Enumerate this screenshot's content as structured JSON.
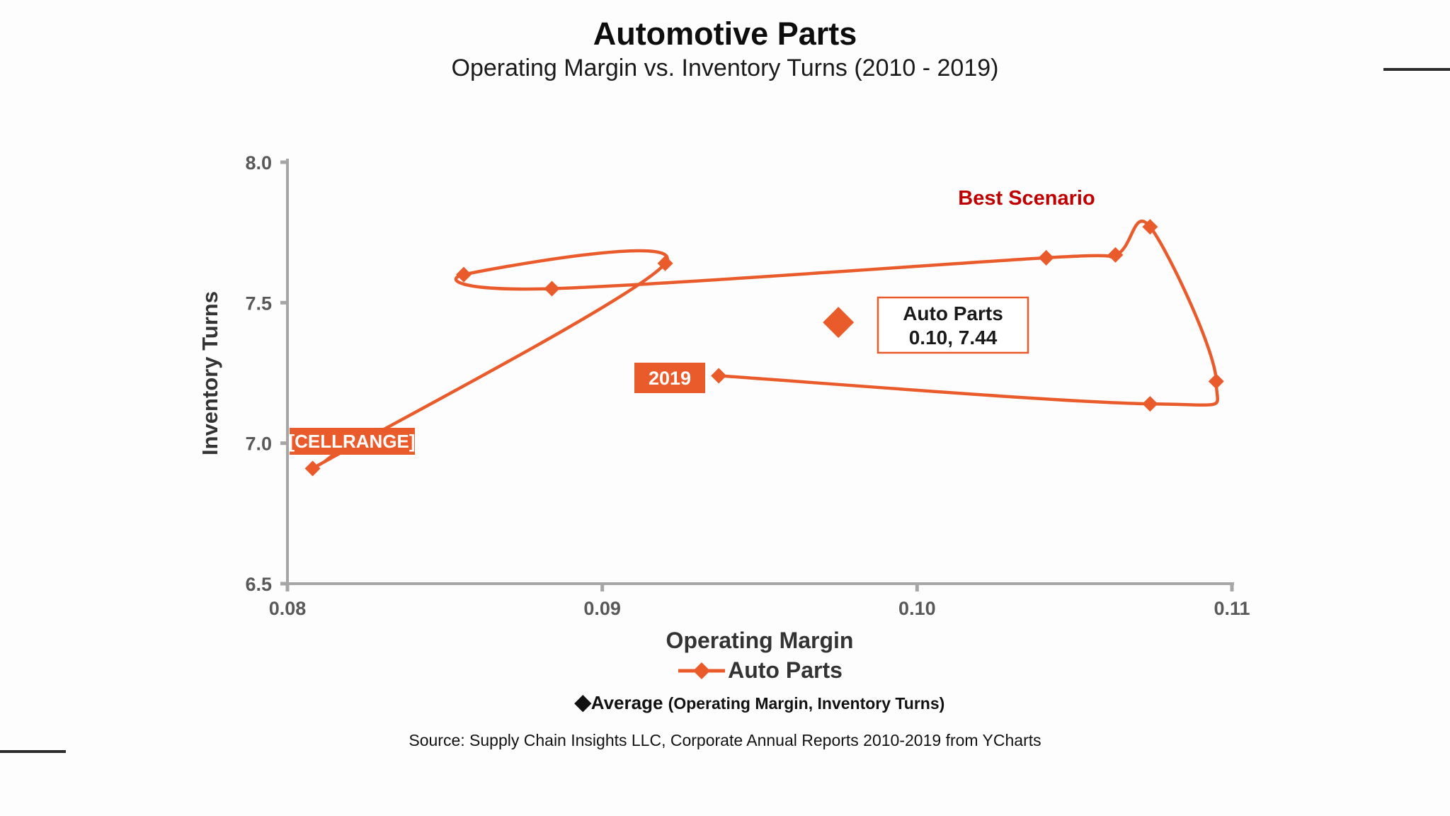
{
  "page": {
    "title": "Automotive Parts",
    "subtitle": "Operating Margin vs. Inventory Turns (2010 - 2019)",
    "source": "Source:  Supply Chain Insights LLC, Corporate Annual Reports 2010-2019 from YCharts"
  },
  "colors": {
    "series_orange": "#EA5B2B",
    "best_scenario_red": "#C00000",
    "axis_gray": "#A6A6A6",
    "tick_label_gray": "#595959",
    "text_dark": "#1a1a1a",
    "label_text_white": "#ffffff",
    "callout_fill": "#ffffff"
  },
  "chart_data": {
    "type": "scatter",
    "title": "Automotive Parts",
    "subtitle": "Operating Margin vs. Inventory Turns (2010 - 2019)",
    "xlabel": "Operating Margin",
    "ylabel": "Inventory Turns",
    "xlim": [
      0.08,
      0.11
    ],
    "ylim": [
      6.5,
      8.0
    ],
    "x_ticks": [
      "0.08",
      "0.09",
      "0.10",
      "0.11"
    ],
    "y_ticks": [
      "8.0",
      "7.5",
      "7.0",
      "6.5"
    ],
    "grid": false,
    "legend_position": "bottom",
    "series": [
      {
        "name": "Auto Parts",
        "color": "#EA5B2B",
        "style": "smooth line with diamond markers, trajectory 2010 to 2019",
        "points": [
          {
            "om": 0.0808,
            "it": 6.91,
            "label": "[CELLRANGE]"
          },
          {
            "om": 0.092,
            "it": 7.64
          },
          {
            "om": 0.0856,
            "it": 7.6
          },
          {
            "om": 0.0884,
            "it": 7.55
          },
          {
            "om": 0.1041,
            "it": 7.66
          },
          {
            "om": 0.1063,
            "it": 7.67
          },
          {
            "om": 0.1074,
            "it": 7.77
          },
          {
            "om": 0.1095,
            "it": 7.22
          },
          {
            "om": 0.1074,
            "it": 7.14
          },
          {
            "om": 0.0937,
            "it": 7.24,
            "label": "2019"
          }
        ]
      }
    ],
    "average_marker": {
      "om": 0.0975,
      "it": 7.43,
      "callout_title": "Auto Parts",
      "callout_value": "0.10, 7.44"
    },
    "annotations": {
      "best_scenario": "Best Scenario"
    },
    "legend": {
      "series_label": "Auto Parts",
      "average_glyph": "◆",
      "average_label": "Average",
      "average_sublabel": "(Operating Margin, Inventory Turns)"
    }
  }
}
